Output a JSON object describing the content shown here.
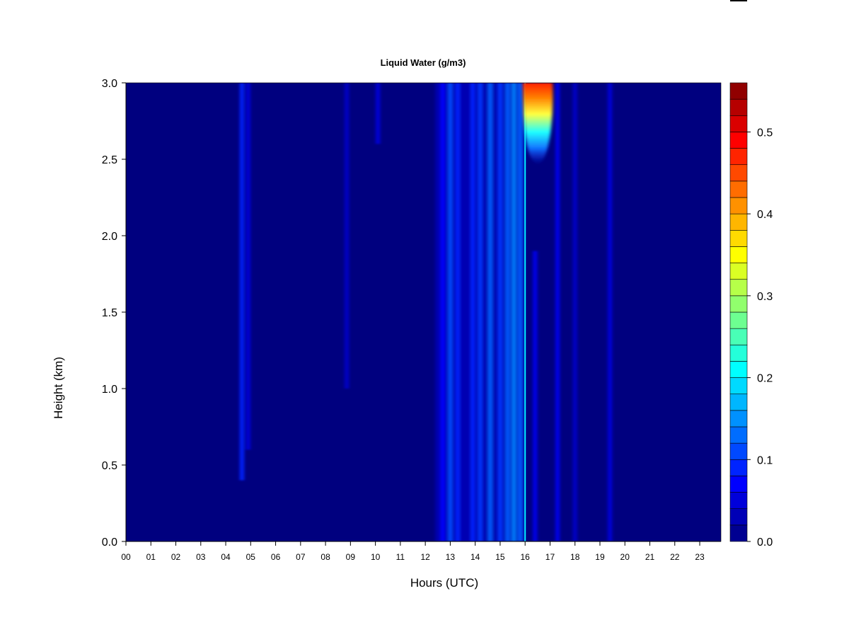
{
  "chart_data": {
    "type": "heatmap",
    "title": "Liquid Water (g/m3)",
    "xlabel": "Hours (UTC)",
    "ylabel": "Height (km)",
    "xlim": [
      0,
      23.85
    ],
    "ylim": [
      0.0,
      3.0
    ],
    "x_ticks": [
      "00",
      "01",
      "02",
      "03",
      "04",
      "05",
      "06",
      "07",
      "08",
      "09",
      "10",
      "11",
      "12",
      "13",
      "14",
      "15",
      "16",
      "17",
      "18",
      "19",
      "20",
      "21",
      "22",
      "23"
    ],
    "y_ticks": [
      "0.0",
      "0.5",
      "1.0",
      "1.5",
      "2.0",
      "2.5",
      "3.0"
    ],
    "colorbar": {
      "min": 0.0,
      "max": 0.56,
      "levels": 28,
      "tick_values": [
        0.0,
        0.1,
        0.2,
        0.3,
        0.4,
        0.5
      ],
      "tick_labels": [
        "0.0",
        "0.1",
        "0.2",
        "0.3",
        "0.4",
        "0.5"
      ],
      "colormap": [
        "#00007f",
        "#0000ff",
        "#007fff",
        "#00ffff",
        "#7fff7f",
        "#ffff00",
        "#ff7f00",
        "#ff0000",
        "#7f0000"
      ]
    },
    "background_value": 0.0,
    "column_features": [
      {
        "hour": 4.65,
        "value": 0.09,
        "top_km": 3.0,
        "bottom_km": 0.4
      },
      {
        "hour": 4.9,
        "value": 0.05,
        "top_km": 3.0,
        "bottom_km": 0.6
      },
      {
        "hour": 8.85,
        "value": 0.04,
        "top_km": 3.0,
        "bottom_km": 1.0
      },
      {
        "hour": 10.1,
        "value": 0.05,
        "top_km": 3.0,
        "bottom_km": 2.6
      },
      {
        "hour": 12.7,
        "value": 0.07,
        "top_km": 3.0,
        "bottom_km": 0.0
      },
      {
        "hour": 13.0,
        "value": 0.11,
        "top_km": 3.0,
        "bottom_km": 0.0
      },
      {
        "hour": 13.3,
        "value": 0.09,
        "top_km": 3.0,
        "bottom_km": 0.0
      },
      {
        "hour": 13.9,
        "value": 0.09,
        "top_km": 3.0,
        "bottom_km": 0.0
      },
      {
        "hour": 14.2,
        "value": 0.1,
        "top_km": 3.0,
        "bottom_km": 0.0
      },
      {
        "hour": 14.6,
        "value": 0.12,
        "top_km": 3.0,
        "bottom_km": 0.0
      },
      {
        "hour": 15.0,
        "value": 0.1,
        "top_km": 3.0,
        "bottom_km": 0.0
      },
      {
        "hour": 15.3,
        "value": 0.12,
        "top_km": 3.0,
        "bottom_km": 0.0
      },
      {
        "hour": 15.55,
        "value": 0.14,
        "top_km": 3.0,
        "bottom_km": 0.0
      },
      {
        "hour": 15.8,
        "value": 0.12,
        "top_km": 3.0,
        "bottom_km": 0.0
      },
      {
        "hour": 16.0,
        "value": 0.2,
        "top_km": 3.0,
        "bottom_km": 0.0
      },
      {
        "hour": 16.4,
        "value": 0.06,
        "top_km": 1.9,
        "bottom_km": 0.0
      },
      {
        "hour": 17.3,
        "value": 0.06,
        "top_km": 3.0,
        "bottom_km": 0.0
      },
      {
        "hour": 18.0,
        "value": 0.04,
        "top_km": 3.0,
        "bottom_km": 0.0
      },
      {
        "hour": 19.4,
        "value": 0.05,
        "top_km": 3.0,
        "bottom_km": 0.0
      }
    ],
    "max_region": {
      "hour_start": 15.9,
      "hour_end": 17.1,
      "height_top_km": 3.0,
      "height_bottom_km": 2.5,
      "peak_value": 0.5
    }
  }
}
